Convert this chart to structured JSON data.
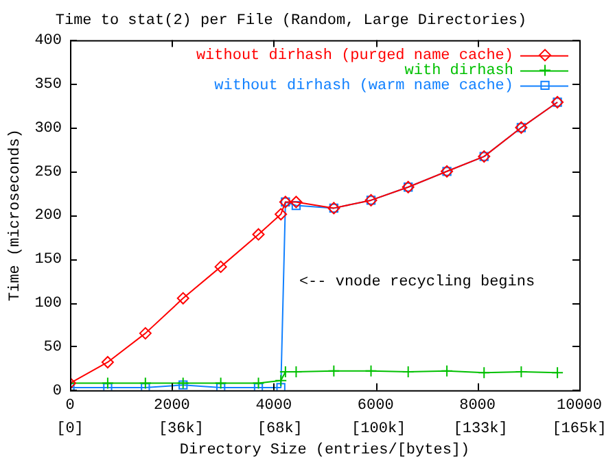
{
  "chart_data": {
    "type": "line",
    "title": "Time to stat(2) per File (Random, Large Directories)",
    "xlabel": "Directory Size (entries/[bytes])",
    "ylabel": "Time (microseconds)",
    "xlim": [
      0,
      10000
    ],
    "xticks": [
      0,
      2000,
      4000,
      6000,
      8000,
      10000
    ],
    "x2lim": [
      0,
      165000
    ],
    "x2ticks": [
      {
        "value": 0,
        "label": "[0]"
      },
      {
        "value": 36000,
        "label": "[36k]"
      },
      {
        "value": 68000,
        "label": "[68k]"
      },
      {
        "value": 100000,
        "label": "[100k]"
      },
      {
        "value": 133000,
        "label": "[133k]"
      },
      {
        "value": 165000,
        "label": "[165k]"
      }
    ],
    "ylim": [
      0,
      400
    ],
    "yticks": [
      0,
      50,
      100,
      150,
      200,
      250,
      300,
      350,
      400
    ],
    "grid": false,
    "legend": "top right",
    "x": [
      0,
      740,
      1480,
      2220,
      2960,
      3700,
      4140,
      4230,
      4440,
      5180,
      5910,
      6640,
      7400,
      8130,
      8860,
      9570
    ],
    "series": [
      {
        "name": "without dirhash (purged name cache)",
        "color": "#ff0000",
        "marker": "diamond",
        "values": [
          8,
          32,
          65,
          105,
          141,
          178,
          201,
          215,
          215,
          208,
          217,
          232,
          250,
          267,
          300,
          329
        ]
      },
      {
        "name": "with dirhash",
        "color": "#00c000",
        "marker": "cross",
        "values": [
          8,
          8,
          8,
          8,
          8,
          8,
          11,
          21,
          21,
          22,
          22,
          21,
          22,
          20,
          21,
          20
        ]
      },
      {
        "name": "without dirhash (warm name cache)",
        "color": "#1080ff",
        "marker": "square",
        "values": [
          3,
          3,
          3,
          6,
          3,
          3,
          3,
          215,
          211,
          208,
          217,
          232,
          250,
          267,
          300,
          329
        ]
      }
    ],
    "annotations": [
      "<-- vnode recycling begins"
    ]
  }
}
